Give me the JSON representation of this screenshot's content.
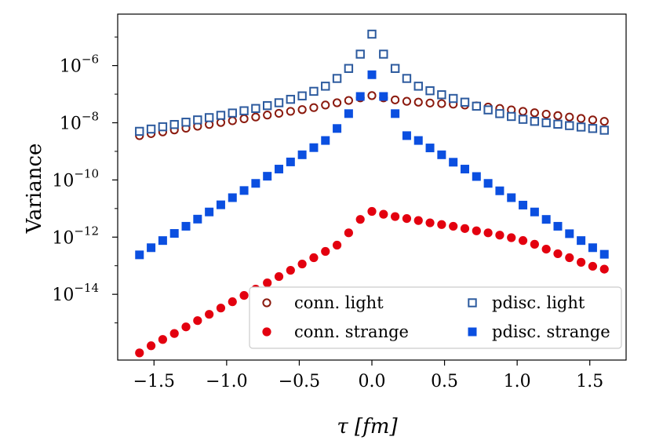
{
  "chart_data": {
    "type": "scatter",
    "title": "",
    "xlabel": "τ [fm]",
    "ylabel": "Variance",
    "xlim": [
      -1.75,
      1.75
    ],
    "yscale": "log",
    "ylim_exponent": [
      -16.3,
      -4.2
    ],
    "xticks": [
      {
        "value": -1.5,
        "label": "−1.5"
      },
      {
        "value": -1.0,
        "label": "−1.0"
      },
      {
        "value": -0.5,
        "label": "−0.5"
      },
      {
        "value": 0.0,
        "label": "0.0"
      },
      {
        "value": 0.5,
        "label": "0.5"
      },
      {
        "value": 1.0,
        "label": "1.0"
      },
      {
        "value": 1.5,
        "label": "1.5"
      }
    ],
    "yticks": [
      {
        "exponent": -6,
        "base": "10",
        "power": "−6"
      },
      {
        "exponent": -8,
        "base": "10",
        "power": "−8"
      },
      {
        "exponent": -10,
        "base": "10",
        "power": "−10"
      },
      {
        "exponent": -12,
        "base": "10",
        "power": "−12"
      },
      {
        "exponent": -14,
        "base": "10",
        "power": "−14"
      }
    ],
    "x": [
      -1.6,
      -1.52,
      -1.44,
      -1.36,
      -1.28,
      -1.2,
      -1.12,
      -1.04,
      -0.96,
      -0.88,
      -0.8,
      -0.72,
      -0.64,
      -0.56,
      -0.48,
      -0.4,
      -0.32,
      -0.24,
      -0.16,
      -0.08,
      0.0,
      0.08,
      0.16,
      0.24,
      0.32,
      0.4,
      0.48,
      0.56,
      0.64,
      0.72,
      0.8,
      0.88,
      0.96,
      1.04,
      1.12,
      1.2,
      1.28,
      1.36,
      1.44,
      1.52,
      1.6
    ],
    "series": [
      {
        "name": "conn. light",
        "marker": "circle-open",
        "color": "#8b1a0e",
        "log10_values": [
          -8.45,
          -8.38,
          -8.32,
          -8.25,
          -8.19,
          -8.12,
          -8.06,
          -7.99,
          -7.93,
          -7.86,
          -7.8,
          -7.73,
          -7.67,
          -7.6,
          -7.54,
          -7.47,
          -7.38,
          -7.3,
          -7.22,
          -7.13,
          -7.05,
          -7.13,
          -7.2,
          -7.25,
          -7.28,
          -7.31,
          -7.33,
          -7.35,
          -7.38,
          -7.41,
          -7.45,
          -7.5,
          -7.55,
          -7.6,
          -7.65,
          -7.7,
          -7.75,
          -7.8,
          -7.85,
          -7.9,
          -7.95
        ]
      },
      {
        "name": "pdisc. light",
        "marker": "square-open",
        "color": "#2c5a9e",
        "log10_values": [
          -8.3,
          -8.22,
          -8.14,
          -8.06,
          -7.98,
          -7.9,
          -7.82,
          -7.74,
          -7.66,
          -7.58,
          -7.5,
          -7.4,
          -7.3,
          -7.18,
          -7.06,
          -6.9,
          -6.72,
          -6.45,
          -6.1,
          -5.6,
          -4.9,
          -5.6,
          -6.1,
          -6.45,
          -6.72,
          -6.88,
          -7.02,
          -7.15,
          -7.28,
          -7.42,
          -7.55,
          -7.68,
          -7.78,
          -7.88,
          -7.95,
          -8.0,
          -8.05,
          -8.1,
          -8.15,
          -8.2,
          -8.26
        ]
      },
      {
        "name": "conn. strange",
        "marker": "circle-filled",
        "color": "#e3000f",
        "log10_values": [
          -16.05,
          -15.8,
          -15.58,
          -15.37,
          -15.14,
          -14.92,
          -14.7,
          -14.48,
          -14.26,
          -14.04,
          -13.82,
          -13.6,
          -13.38,
          -13.16,
          -12.94,
          -12.72,
          -12.5,
          -12.28,
          -11.85,
          -11.38,
          -11.1,
          -11.2,
          -11.28,
          -11.35,
          -11.42,
          -11.5,
          -11.56,
          -11.62,
          -11.7,
          -11.78,
          -11.85,
          -11.93,
          -12.02,
          -12.12,
          -12.25,
          -12.42,
          -12.58,
          -12.72,
          -12.88,
          -13.02,
          -13.12
        ]
      },
      {
        "name": "pdisc. strange",
        "marker": "square-filled",
        "color": "#0b4fe0",
        "log10_values": [
          -12.62,
          -12.37,
          -12.12,
          -11.87,
          -11.62,
          -11.37,
          -11.12,
          -10.87,
          -10.62,
          -10.37,
          -10.12,
          -9.87,
          -9.62,
          -9.37,
          -9.12,
          -8.87,
          -8.62,
          -8.2,
          -7.68,
          -7.08,
          -6.32,
          -7.08,
          -7.68,
          -8.45,
          -8.62,
          -8.88,
          -9.12,
          -9.38,
          -9.62,
          -9.88,
          -10.12,
          -10.38,
          -10.62,
          -10.88,
          -11.12,
          -11.38,
          -11.62,
          -11.88,
          -12.12,
          -12.37,
          -12.6
        ]
      }
    ],
    "legend": {
      "location": "lower-right",
      "ncols": 2,
      "entries": [
        "conn. light",
        "pdisc. light",
        "conn. strange",
        "pdisc. strange"
      ]
    },
    "grid": false
  }
}
